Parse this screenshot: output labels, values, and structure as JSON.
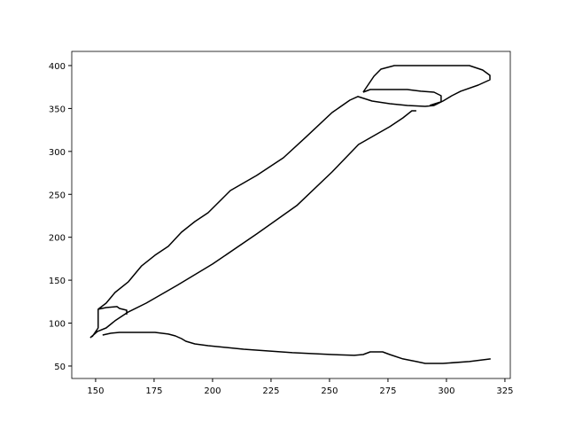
{
  "chart_data": {
    "type": "line",
    "x": [
      153.0,
      156.4,
      160.2,
      175.4,
      181.1,
      184.1,
      186.7,
      188.6,
      192.4,
      198.1,
      213.3,
      234.1,
      251.1,
      260.6,
      264.4,
      267.4,
      272.7,
      275.8,
      281.4,
      287.1,
      290.9,
      298.5,
      309.8,
      318.9,
      null,
      147.7,
      150.8,
      154.5,
      158.3,
      164.0,
      171.6,
      184.8,
      200.0,
      218.9,
      236.0,
      251.1,
      262.4,
      275.8,
      281.4,
      285.2,
      287.1,
      null,
      163.3,
      163.3,
      160.2,
      159.1,
      154.5,
      151.1,
      151.1,
      148.5,
      null,
      151.1,
      154.5,
      158.3,
      164.0,
      169.7,
      175.4,
      181.1,
      186.7,
      192.4,
      198.1,
      203.8,
      207.6,
      218.9,
      230.3,
      239.8,
      251.1,
      258.7,
      262.1,
      268.2,
      275.8,
      283.3,
      290.9,
      294.7,
      298.5,
      302.3,
      306.1,
      313.6,
      318.6,
      318.6,
      315.5,
      309.8,
      277.7,
      272.0,
      269.0,
      264.4,
      null,
      264.4,
      267.4,
      283.3,
      289.0,
      294.7,
      297.7,
      297.7,
      292.8
    ],
    "values": [
      86.1,
      88.2,
      89.2,
      89.2,
      87.2,
      85.1,
      82.0,
      78.9,
      75.8,
      73.7,
      69.6,
      65.5,
      63.4,
      62.4,
      63.4,
      66.5,
      66.5,
      63.4,
      58.3,
      55.2,
      53.1,
      53.1,
      55.2,
      58.3,
      null,
      83.0,
      90.3,
      94.4,
      102.7,
      113.0,
      123.3,
      143.9,
      168.8,
      203.9,
      236.9,
      276.1,
      308.1,
      328.8,
      339.1,
      347.3,
      347.3,
      null,
      109.9,
      115.0,
      117.1,
      119.2,
      118.1,
      116.1,
      94.4,
      84.1,
      null,
      116.1,
      123.3,
      135.7,
      148.1,
      166.7,
      179.1,
      189.4,
      205.9,
      218.3,
      228.6,
      244.1,
      254.4,
      272.0,
      292.6,
      316.4,
      345.3,
      359.7,
      363.9,
      358.7,
      355.6,
      353.5,
      352.5,
      353.5,
      358.7,
      364.9,
      370.1,
      377.3,
      383.5,
      388.6,
      394.8,
      400,
      400,
      395.9,
      387.6,
      369.0,
      null,
      369.0,
      372.1,
      372.1,
      370.1,
      369.0,
      364.9,
      357.7,
      353.5
    ],
    "color": "#000000",
    "xlim": [
      139.8,
      327.3
    ],
    "xticks": [
      150,
      175,
      200,
      225,
      250,
      275,
      300,
      325
    ],
    "ylim": [
      35.5,
      416.5
    ],
    "yticks": [
      50,
      100,
      150,
      200,
      250,
      300,
      350,
      400
    ]
  }
}
